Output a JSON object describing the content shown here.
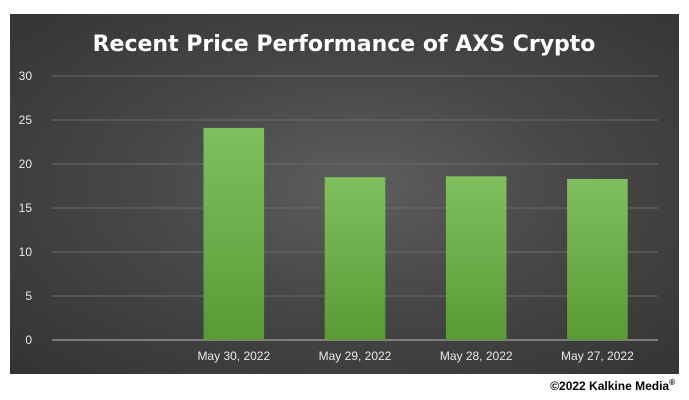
{
  "copyright": {
    "text": "©2022 Kalkine Media",
    "mark": "®"
  },
  "chart_data": {
    "type": "bar",
    "title": "Recent Price Performance of AXS Crypto",
    "categories": [
      "",
      "May 30, 2022",
      "May 29, 2022",
      "May 28, 2022",
      "May 27, 2022"
    ],
    "values": [
      null,
      24.1,
      18.5,
      18.6,
      18.3
    ],
    "yticks": [
      0,
      5,
      10,
      15,
      20,
      25,
      30
    ],
    "ylim": [
      0,
      30
    ],
    "grid": true,
    "legend": "none",
    "colors": {
      "bar_top": "#7fbf5e",
      "bar_bottom": "#5a9a36",
      "grid": "#6a6a6a",
      "axis": "#bdbdbd"
    }
  }
}
